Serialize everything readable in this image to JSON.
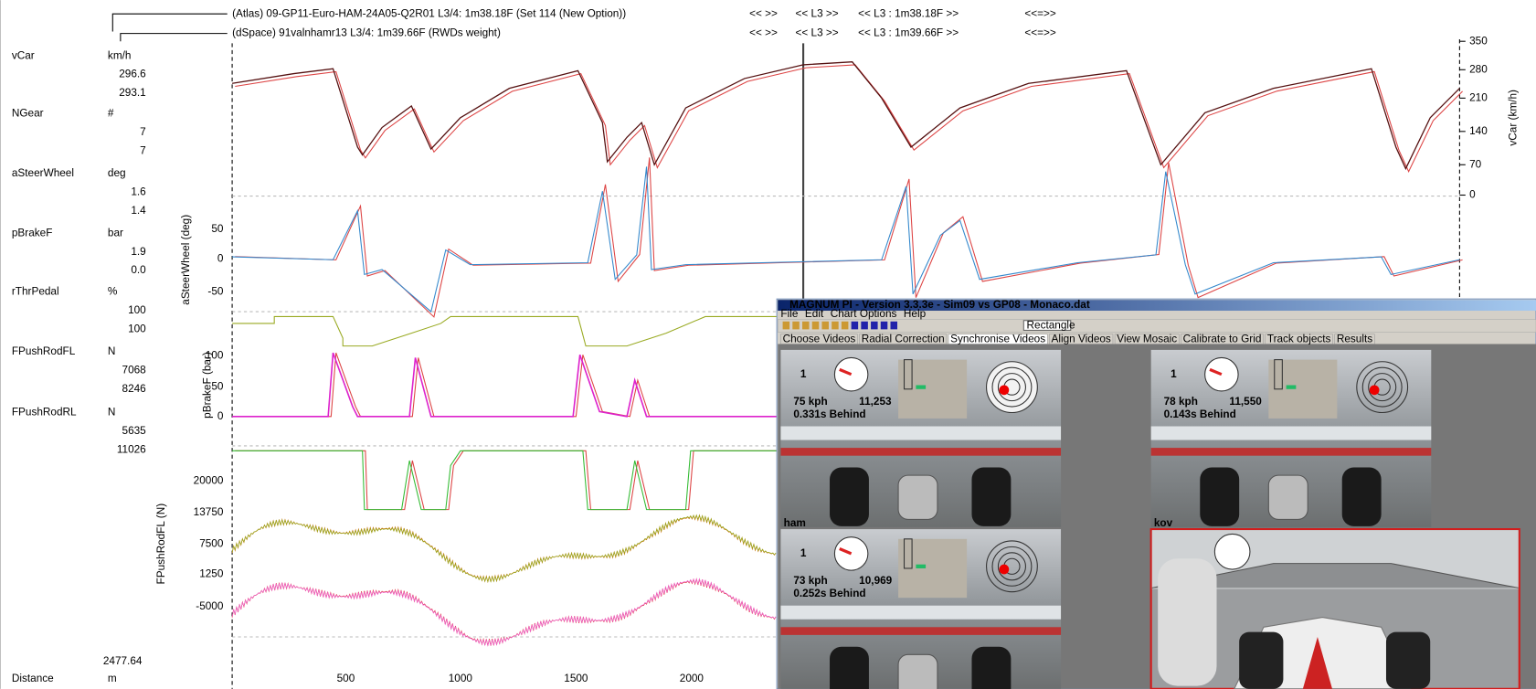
{
  "header": {
    "lines": [
      {
        "text": "(Atlas) 09-GP11-Euro-HAM-24A05-Q2R01 L3/4: 1m38.18F (Set 114 (New Option))",
        "markers": [
          "<< >>",
          "<< L3 >>",
          "<< L3 : 1m38.18F >>",
          "<<=>>"
        ]
      },
      {
        "text": "(dSpace) 91valnhamr13 L3/4: 1m39.66F (RWDs weight)",
        "markers": [
          "<< >>",
          "<< L3 >>",
          "<< L3 : 1m39.66F >>",
          "<<=>>"
        ]
      }
    ]
  },
  "channels": [
    {
      "name": "vCar",
      "unit": "km/h",
      "values": [
        "296.6",
        "293.1"
      ]
    },
    {
      "name": "NGear",
      "unit": "#",
      "values": [
        "7",
        "7"
      ]
    },
    {
      "name": "aSteerWheel",
      "unit": "deg",
      "values": [
        "1.6",
        "1.4"
      ]
    },
    {
      "name": "pBrakeF",
      "unit": "bar",
      "values": [
        "1.9",
        "0.0"
      ]
    },
    {
      "name": "rThrPedal",
      "unit": "%",
      "values": [
        "100",
        "100"
      ]
    },
    {
      "name": "FPushRodFL",
      "unit": "N",
      "values": [
        "7068",
        "8246"
      ]
    },
    {
      "name": "FPushRodRL",
      "unit": "N",
      "values": [
        "5635",
        "11026"
      ]
    }
  ],
  "cursor": {
    "value": "2477.64",
    "label": "Distance",
    "unit": "m"
  },
  "axes": {
    "vcar": {
      "label": "vCar (km/h)",
      "ticks": [
        "350",
        "280",
        "210",
        "140",
        "70",
        "0"
      ]
    },
    "steer": {
      "label": "aSteerWheel (deg)",
      "ticks": [
        "50",
        "0",
        "-50"
      ]
    },
    "brake": {
      "label": "pBrakeF (bar)",
      "ticks": [
        "100",
        "50",
        "0"
      ]
    },
    "pushrod": {
      "label": "FPushRodFL (N)",
      "ticks": [
        "20000",
        "13750",
        "7500",
        "1250",
        "-5000"
      ]
    },
    "distance": {
      "ticks": [
        "500",
        "1000",
        "1500",
        "2000"
      ]
    }
  },
  "magnum": {
    "title": "MAGNUM PI - Version 3.3.3e - Sim09 vs GP08 - Monaco.dat",
    "menu": [
      "File",
      "Edit",
      "Chart Options",
      "Help"
    ],
    "dropdown": "Rectangle",
    "tabs": [
      "Choose Videos",
      "Radial Correction",
      "Synchronise Videos",
      "Align Videos",
      "View Mosaic",
      "Calibrate to Grid",
      "Track objects",
      "Results"
    ],
    "videos": [
      {
        "gear": "1",
        "speed": "75 kph",
        "rpm": "11,253",
        "gap": "0.331s Behind",
        "driver": "ham"
      },
      {
        "gear": "1",
        "speed": "78 kph",
        "rpm": "11,550",
        "gap": "0.143s Behind",
        "driver": "kov"
      },
      {
        "gear": "1",
        "speed": "73 kph",
        "rpm": "10,969",
        "gap": "0.252s Behind"
      }
    ]
  }
}
